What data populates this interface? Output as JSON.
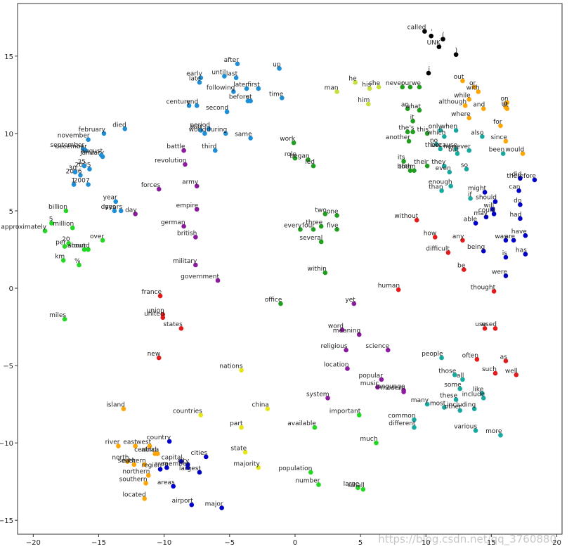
{
  "chart_data": {
    "type": "scatter",
    "xlim": [
      -21.2,
      20.4
    ],
    "ylim": [
      -15.9,
      18.4
    ],
    "xticks": [
      {
        "value": -20,
        "label": "−20"
      },
      {
        "value": -15,
        "label": "−15"
      },
      {
        "value": -10,
        "label": "−10"
      },
      {
        "value": -5,
        "label": "−5"
      },
      0,
      5,
      10,
      15,
      20
    ],
    "yticks": [
      {
        "value": -15,
        "label": "−15"
      },
      {
        "value": -10,
        "label": "−10"
      },
      {
        "value": -5,
        "label": "−5"
      },
      0,
      5,
      10,
      15
    ],
    "watermark": "https://blog.csdn.net/qq_3760880",
    "series": [
      {
        "color": "#000000",
        "labels": [
          "called",
          "'",
          "(",
          "UNK",
          ")",
          "i"
        ],
        "x": [
          9.9,
          10.4,
          11.3,
          11.0,
          12.3,
          10.2
        ],
        "y": [
          16.6,
          16.3,
          16.1,
          15.6,
          15.1,
          13.9
        ]
      },
      {
        "color": "#1e8fd6",
        "labels": [
          "after",
          "up",
          "early",
          "late",
          "until",
          "last",
          "later",
          "first",
          "following",
          "before",
          "st",
          "time",
          "century",
          "end",
          "second",
          "died",
          "february",
          "november",
          "september",
          "december",
          "january",
          "august",
          "period",
          "war",
          "world",
          "during",
          "same",
          "third",
          "2005",
          "25",
          "2006",
          "30",
          "1",
          "2007",
          "year",
          "days",
          "years"
        ],
        "x": [
          -4.4,
          -1.2,
          -7.2,
          -7.3,
          -5.4,
          -4.5,
          -3.7,
          -2.8,
          -4.7,
          -3.6,
          -3.4,
          -1.0,
          -8.1,
          -7.5,
          -5.2,
          -13.0,
          -14.6,
          -15.8,
          -16.2,
          -16.0,
          -14.7,
          -14.8,
          -6.6,
          -7.2,
          -6.9,
          -5.3,
          -3.4,
          -6.1,
          -15.7,
          -16.1,
          -16.4,
          -16.8,
          -16.9,
          -15.8,
          -13.7,
          -13.8,
          -13.3
        ],
        "y": [
          14.5,
          14.2,
          13.6,
          13.3,
          13.7,
          13.6,
          12.9,
          12.9,
          12.7,
          12.1,
          12.1,
          12.3,
          11.8,
          11.8,
          11.4,
          10.3,
          10.0,
          9.6,
          9.0,
          8.9,
          8.5,
          8.6,
          10.3,
          10.2,
          10.0,
          10.0,
          9.7,
          8.9,
          7.7,
          7.9,
          7.3,
          7.5,
          6.7,
          6.7,
          5.6,
          5.0,
          5.0
        ]
      },
      {
        "color": "#8b1a9e",
        "labels": [
          "battle",
          "revolution",
          "army",
          "forces",
          "day",
          "empire",
          "german",
          "british",
          "military",
          "government",
          "word",
          "meaning",
          "religious",
          "science",
          "location",
          "popular",
          "music",
          "language",
          "modern",
          "system",
          "yet"
        ],
        "x": [
          -8.5,
          -8.4,
          -7.5,
          -10.4,
          -12.2,
          -7.5,
          -8.5,
          -7.6,
          -7.6,
          -5.9,
          3.6,
          4.9,
          3.9,
          7.1,
          4.0,
          6.6,
          6.3,
          8.3,
          8.3,
          2.5,
          4.5
        ],
        "y": [
          8.9,
          8.0,
          6.6,
          6.4,
          4.8,
          5.1,
          4.0,
          3.3,
          1.5,
          0.5,
          -2.7,
          -3.0,
          -4.0,
          -4.0,
          -5.2,
          -5.9,
          -6.4,
          -6.6,
          -6.7,
          -7.1,
          -1.0
        ]
      },
      {
        "color": "#1f9e1f",
        "labels": [
          "work",
          "role",
          "began",
          "led",
          "two",
          "one",
          "three",
          "five",
          "every",
          "four",
          "several",
          "within",
          "office",
          "its",
          "both",
          "them",
          "never",
          "our",
          "we",
          "an",
          "what",
          "it",
          "the",
          "'s",
          "this",
          "another",
          "their"
        ],
        "x": [
          -0.1,
          0.0,
          1.0,
          1.4,
          2.3,
          3.2,
          2.0,
          3.2,
          0.4,
          1.4,
          2.0,
          2.3,
          -1.1,
          8.3,
          8.8,
          9.1,
          8.2,
          8.8,
          9.5,
          8.6,
          9.5,
          9.0,
          8.6,
          9.0,
          10.1,
          8.7,
          10.1
        ],
        "y": [
          9.4,
          8.4,
          8.3,
          7.9,
          4.8,
          4.7,
          4.0,
          3.8,
          3.8,
          3.8,
          3.0,
          1.0,
          -1.0,
          8.2,
          7.6,
          7.6,
          13.0,
          13.0,
          13.0,
          11.6,
          11.5,
          10.8,
          10.1,
          10.1,
          10.0,
          9.5,
          7.9
        ]
      },
      {
        "color": "#22d822",
        "labels": [
          "billion",
          "5",
          "million",
          "approximately",
          "around",
          "over",
          "20",
          "per",
          "about",
          "km",
          "%",
          "miles",
          "available",
          "important",
          "much",
          "population",
          "number",
          "large",
          "small"
        ],
        "x": [
          -17.5,
          -18.6,
          -17.0,
          -19.1,
          -15.8,
          -14.7,
          -17.3,
          -17.6,
          -16.1,
          -17.7,
          -16.5,
          -17.6,
          1.5,
          4.9,
          6.2,
          1.2,
          1.8,
          4.8,
          5.2
        ],
        "y": [
          5.0,
          4.2,
          3.9,
          3.7,
          2.5,
          3.1,
          2.9,
          2.7,
          2.5,
          1.8,
          1.5,
          -2.0,
          -9.0,
          -8.2,
          -10.0,
          -11.9,
          -12.7,
          -12.9,
          -13.0
        ]
      },
      {
        "color": "#c5e03a",
        "labels": [
          "man",
          "he",
          "his",
          "she",
          "him"
        ],
        "x": [
          3.2,
          4.6,
          5.7,
          6.4,
          5.6
        ],
        "y": [
          12.7,
          13.3,
          12.9,
          13.0,
          11.9
        ]
      },
      {
        "color": "#e6e619",
        "labels": [
          "nations",
          "countries",
          "china",
          "part",
          "state",
          "majority"
        ],
        "x": [
          -4.1,
          -7.2,
          -2.1,
          -4.1,
          -3.8,
          -2.8
        ],
        "y": [
          -5.3,
          -8.2,
          -7.8,
          -9.0,
          -10.6,
          -11.6
        ]
      },
      {
        "color": "#ffa500",
        "labels": [
          "island",
          "river",
          "west",
          "east",
          "africa",
          "north",
          "central",
          "south",
          "eastern",
          "northern",
          "southern",
          "located",
          "out",
          "or",
          "with",
          "although",
          "where",
          "and",
          "while",
          "for",
          "on",
          "in",
          "at",
          "since",
          "would"
        ],
        "x": [
          -13.1,
          -13.5,
          -11.1,
          -12.2,
          -10.5,
          -12.8,
          -10.7,
          -12.3,
          -11.5,
          -11.2,
          -11.4,
          -11.5,
          12.8,
          13.7,
          14.0,
          13.0,
          13.3,
          14.4,
          13.3,
          15.7,
          16.2,
          16.1,
          16.2,
          16.1,
          17.4
        ],
        "y": [
          -7.8,
          -10.2,
          -10.2,
          -10.2,
          -10.7,
          -11.2,
          -10.7,
          -11.4,
          -11.4,
          -12.1,
          -12.6,
          -13.6,
          13.4,
          13.0,
          12.7,
          11.8,
          11.0,
          11.6,
          12.2,
          10.5,
          12.0,
          11.7,
          11.6,
          9.5,
          8.7
        ]
      },
      {
        "color": "#e31a1c",
        "labels": [
          "without",
          "how",
          "any",
          "difficult",
          "be",
          "human",
          "thought",
          "used",
          "use",
          "france",
          "union",
          "united",
          "states",
          "new",
          "often",
          "as",
          "such",
          "well"
        ],
        "x": [
          9.3,
          10.7,
          12.8,
          11.7,
          12.9,
          7.9,
          15.2,
          15.3,
          14.5,
          -10.3,
          -10.1,
          -10.1,
          -8.7,
          -10.4,
          13.9,
          16.1,
          15.3,
          16.9
        ],
        "y": [
          4.4,
          3.3,
          3.1,
          2.3,
          1.2,
          -0.1,
          -0.2,
          -2.6,
          -2.6,
          -0.5,
          -1.7,
          -1.9,
          -2.6,
          -4.5,
          -4.6,
          -4.7,
          -5.5,
          -5.6
        ]
      },
      {
        "color": "#17a9a0",
        "labels": [
          "only",
          "when",
          "which",
          "no",
          "there",
          "because",
          "however",
          "but",
          "also",
          "they",
          "even",
          "so",
          "been",
          "enough",
          "than",
          "if",
          "people",
          "those",
          "all",
          "some",
          "like",
          "include",
          "these",
          "many",
          "most",
          "other",
          "including",
          "common",
          "different",
          "various",
          "more"
        ],
        "x": [
          11.1,
          12.3,
          11.4,
          10.8,
          11.1,
          12.3,
          13.3,
          12.4,
          14.3,
          11.4,
          11.8,
          13.1,
          15.9,
          11.9,
          11.2,
          13.4,
          11.2,
          12.2,
          12.8,
          12.6,
          14.3,
          14.4,
          12.3,
          10.1,
          11.4,
          12.6,
          13.7,
          9.1,
          9.1,
          13.8,
          15.7
        ],
        "y": [
          10.2,
          10.2,
          9.8,
          9.3,
          9.0,
          9.0,
          8.9,
          8.7,
          9.8,
          7.9,
          7.5,
          7.7,
          8.7,
          6.6,
          6.3,
          5.8,
          -4.5,
          -5.6,
          -5.9,
          -6.5,
          -6.8,
          -7.1,
          -7.2,
          -7.5,
          -7.7,
          -7.9,
          -7.8,
          -8.5,
          -9.0,
          -9.2,
          -9.5
        ]
      },
      {
        "color": "#0000c8",
        "labels": [
          "did",
          "therefore",
          "can",
          "might",
          "should",
          "will",
          "could",
          "do",
          "may",
          "had",
          "able",
          "have",
          "was",
          "are",
          "is",
          "has",
          "being",
          "were",
          "country",
          "capital",
          "city",
          "cities",
          "member",
          "largest",
          "region",
          "area",
          "areas",
          "airport",
          "major"
        ],
        "x": [
          17.2,
          18.3,
          17.1,
          14.5,
          15.3,
          15.1,
          15.2,
          17.2,
          14.6,
          17.2,
          13.8,
          17.6,
          16.1,
          16.7,
          16.1,
          17.6,
          14.4,
          16.1,
          -9.6,
          -8.7,
          -8.2,
          -6.8,
          -8.2,
          -7.3,
          -10.3,
          -9.8,
          -9.3,
          -7.9,
          -5.6
        ],
        "y": [
          7.1,
          7.0,
          6.3,
          6.2,
          5.6,
          5.1,
          4.8,
          5.4,
          4.6,
          4.5,
          4.2,
          3.4,
          3.1,
          3.1,
          2.0,
          2.2,
          2.4,
          0.8,
          -9.9,
          -11.2,
          -11.4,
          -10.9,
          -11.6,
          -11.9,
          -11.7,
          -11.6,
          -12.8,
          -14.0,
          -14.2
        ]
      }
    ]
  }
}
